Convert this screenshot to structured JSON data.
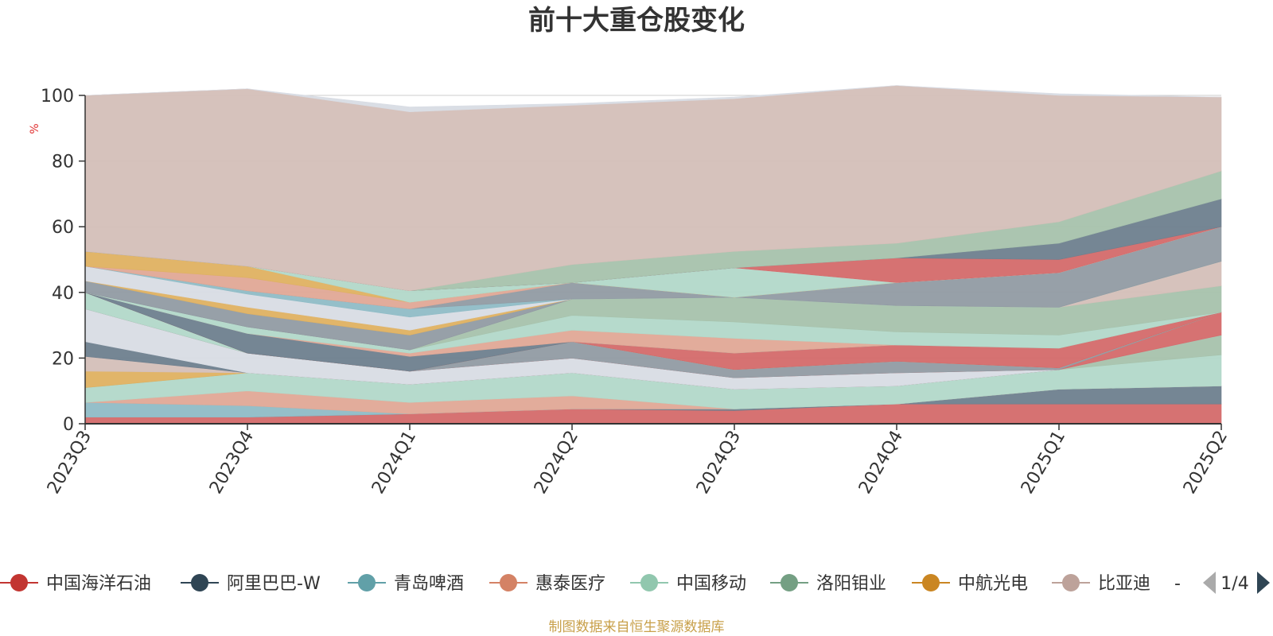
{
  "chart_data": {
    "type": "area",
    "stacked": true,
    "normalized_percent": true,
    "title": "前十大重仓股变化",
    "ylabel": "%",
    "ylim": [
      0,
      100
    ],
    "yticks": [
      0,
      20,
      40,
      60,
      80,
      100
    ],
    "grid": true,
    "legend_placement": "bottom",
    "categories": [
      "2023Q3",
      "2023Q4",
      "2024Q1",
      "2024Q2",
      "2024Q3",
      "2024Q4",
      "2025Q1",
      "2025Q2"
    ],
    "series": [
      {
        "name": "中国海洋石油",
        "color": "#d46a6a",
        "values": [
          2,
          2,
          3,
          4.5,
          4,
          6,
          6,
          6
        ]
      },
      {
        "name": "阿里巴巴-W",
        "color": "#6e7f8e",
        "values": [
          0,
          0,
          0,
          0,
          0.5,
          0,
          4.5,
          5.5
        ]
      },
      {
        "name": "青岛啤酒",
        "color": "#8fbcc6",
        "values": [
          4.5,
          3.5,
          0,
          0,
          0,
          0,
          0,
          0
        ]
      },
      {
        "name": "惠泰医疗",
        "color": "#e0a896",
        "values": [
          0,
          4.5,
          3.5,
          4,
          0,
          0,
          0,
          0
        ]
      },
      {
        "name": "中国移动",
        "color": "#b2d8c9",
        "values": [
          4.5,
          5.5,
          5.5,
          7,
          6,
          5.5,
          6,
          9.5
        ]
      },
      {
        "name": "洛阳钼业",
        "color": "#a7c2ac",
        "values": [
          0,
          0,
          0,
          0,
          0,
          0,
          0,
          6
        ]
      },
      {
        "name": "中航光电",
        "color": "#dfb161",
        "values": [
          5,
          0,
          0,
          0,
          0,
          0,
          0,
          0
        ]
      },
      {
        "name": "比亚迪",
        "color": "#d4bfb8",
        "values": [
          4.5,
          0,
          0,
          0,
          0,
          0,
          0,
          0
        ]
      },
      {
        "name": "",
        "color": "#6e7f8e",
        "values": [
          4.5,
          0,
          0,
          0,
          0,
          0,
          0,
          0
        ]
      },
      {
        "name": "",
        "color": "#d8dce4",
        "values": [
          10,
          6,
          4,
          4.5,
          3.5,
          4,
          0,
          0
        ]
      },
      {
        "name": "",
        "color": "#d46a6a",
        "values": [
          0,
          0,
          0,
          0,
          0,
          0,
          0,
          7
        ]
      },
      {
        "name": "",
        "color": "#919ba3",
        "values": [
          0,
          0,
          0,
          5,
          2.5,
          3.5,
          0.5,
          0
        ]
      },
      {
        "name": "",
        "color": "#b2d8c9",
        "values": [
          5,
          0,
          0,
          0,
          0,
          0,
          0,
          0
        ]
      },
      {
        "name": "",
        "color": "#a7c2ac",
        "values": [
          0,
          0,
          0,
          0,
          0,
          0,
          0,
          0
        ]
      },
      {
        "name": "",
        "color": "#d46a6a",
        "values": [
          0,
          0,
          0,
          0,
          5,
          5,
          6,
          0
        ]
      },
      {
        "name": "",
        "color": "#6e7f8e",
        "values": [
          0,
          6,
          4.5,
          0,
          0,
          0,
          0,
          0
        ]
      },
      {
        "name": "",
        "color": "#e0a896",
        "values": [
          0,
          0,
          1,
          3.5,
          4.5,
          0,
          0,
          0
        ]
      },
      {
        "name": "",
        "color": "#b2d8c9",
        "values": [
          0,
          2,
          1,
          4.5,
          5,
          4,
          4,
          0
        ]
      },
      {
        "name": "",
        "color": "#a7c2ac",
        "values": [
          0,
          0,
          0,
          5,
          7.5,
          8,
          8.5,
          8
        ]
      },
      {
        "name": "",
        "color": "#d4bfb8",
        "values": [
          0,
          0,
          0,
          0,
          0,
          0,
          0,
          7.5
        ]
      },
      {
        "name": "",
        "color": "#919ba3",
        "values": [
          0,
          0,
          0,
          0,
          0,
          0,
          0,
          0
        ]
      },
      {
        "name": "",
        "color": "#919ba3",
        "values": [
          3.5,
          4,
          4.5,
          0,
          0,
          0,
          0,
          0
        ]
      },
      {
        "name": "",
        "color": "#dfb161",
        "values": [
          0,
          2,
          1.5,
          0,
          0,
          0,
          0,
          0
        ]
      },
      {
        "name": "",
        "color": "#d8dce4",
        "values": [
          4.5,
          4,
          4,
          0,
          0,
          0,
          0,
          0
        ]
      },
      {
        "name": "",
        "color": "#8fbcc6",
        "values": [
          0,
          1,
          2.5,
          0,
          0,
          0,
          0,
          0
        ]
      },
      {
        "name": "",
        "color": "#919ba3",
        "values": [
          0,
          0,
          0,
          5,
          0,
          7,
          10.5,
          10.5
        ]
      },
      {
        "name": "",
        "color": "#e0a896",
        "values": [
          0,
          4,
          2,
          0,
          0,
          0,
          0,
          0
        ]
      },
      {
        "name": "",
        "color": "#dfb161",
        "values": [
          4.5,
          3.5,
          0,
          0,
          0,
          0,
          0,
          0
        ]
      },
      {
        "name": "",
        "color": "#b2d8c9",
        "values": [
          0,
          0,
          3.5,
          0,
          9,
          0,
          0,
          0
        ]
      },
      {
        "name": "",
        "color": "#d8dce4",
        "values": [
          0,
          0,
          0,
          0,
          0,
          0,
          0,
          0
        ]
      },
      {
        "name": "",
        "color": "#d46a6a",
        "values": [
          0,
          0,
          0,
          0,
          0,
          7.5,
          4,
          0
        ]
      },
      {
        "name": "",
        "color": "#6e7f8e",
        "values": [
          0,
          0,
          0,
          0,
          0,
          0,
          5,
          8.5
        ]
      },
      {
        "name": "",
        "color": "#a7c2ac",
        "values": [
          0,
          0,
          0,
          5.5,
          5,
          4.5,
          6.5,
          8.5
        ]
      },
      {
        "name": "",
        "color": "#d4bfb8",
        "values": [
          47.5,
          54,
          54.5,
          48.5,
          46.5,
          48,
          38.5,
          22.5
        ]
      },
      {
        "name": "",
        "color": "#d8dce4",
        "values": [
          0,
          0,
          1.5,
          0.5,
          0.5,
          0,
          0.5,
          0
        ]
      }
    ]
  },
  "legend": {
    "items": [
      {
        "name": "中国海洋石油",
        "color": "#c23531"
      },
      {
        "name": "阿里巴巴-W",
        "color": "#2f4554"
      },
      {
        "name": "青岛啤酒",
        "color": "#61a0a8"
      },
      {
        "name": "惠泰医疗",
        "color": "#d48265"
      },
      {
        "name": "中国移动",
        "color": "#91c7ae"
      },
      {
        "name": "洛阳钼业",
        "color": "#749f83"
      },
      {
        "name": "中航光电",
        "color": "#ca8622"
      },
      {
        "name": "比亚迪",
        "color": "#bda29a"
      }
    ],
    "overflow_marker": "-",
    "page_indicator": "1/4"
  },
  "source_note": "制图数据来自恒生聚源数据库"
}
